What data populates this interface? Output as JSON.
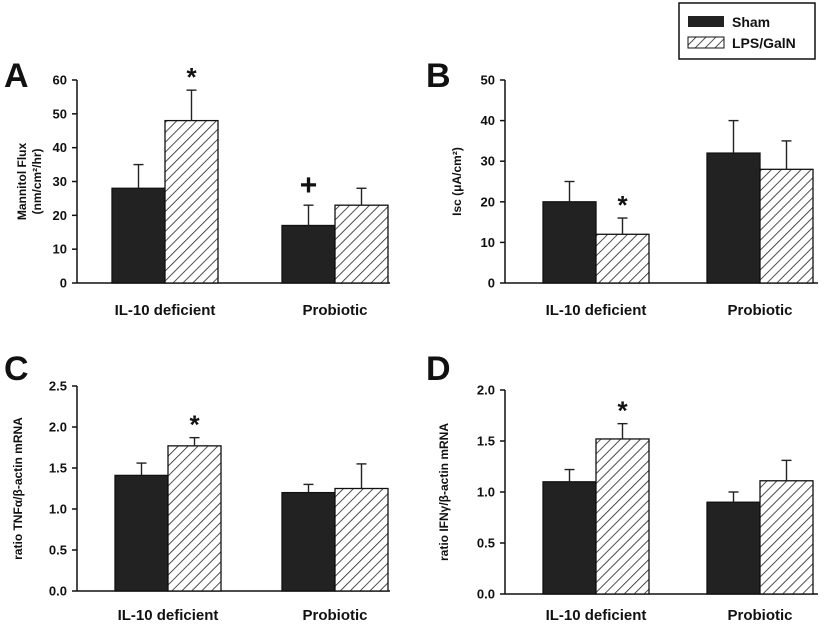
{
  "legend": {
    "sham_label": "Sham",
    "lps_label": "LPS/GalN"
  },
  "colors": {
    "sham": "#222222",
    "lps_hatch": "#222222",
    "axis": "#111111"
  },
  "chart_data": [
    {
      "panel": "A",
      "type": "bar",
      "categories": [
        "IL-10 deficient",
        "Probiotic"
      ],
      "ylabel_line1": "Mannitol Flux",
      "ylabel_line2": "(nm/cm²/hr)",
      "ylim": [
        0,
        60
      ],
      "yticks": [
        "0",
        "10",
        "20",
        "30",
        "40",
        "50",
        "60"
      ],
      "series": [
        {
          "name": "Sham",
          "values": [
            28,
            17
          ],
          "errors": [
            7,
            6
          ]
        },
        {
          "name": "LPS/GalN",
          "values": [
            48,
            23
          ],
          "errors": [
            9,
            5
          ]
        }
      ],
      "annotations": [
        {
          "text": "*",
          "category": 0,
          "series": 1
        },
        {
          "text": "+",
          "category": 1,
          "series": 0
        }
      ]
    },
    {
      "panel": "B",
      "type": "bar",
      "categories": [
        "IL-10 deficient",
        "Probiotic"
      ],
      "ylabel_line1": "Isc (μA/cm²)",
      "ylabel_line2": "",
      "ylim": [
        0,
        50
      ],
      "yticks": [
        "0",
        "10",
        "20",
        "30",
        "40",
        "50"
      ],
      "series": [
        {
          "name": "Sham",
          "values": [
            20,
            32
          ],
          "errors": [
            5,
            8
          ]
        },
        {
          "name": "LPS/GalN",
          "values": [
            12,
            28
          ],
          "errors": [
            4,
            7
          ]
        }
      ],
      "annotations": [
        {
          "text": "*",
          "category": 0,
          "series": 1
        }
      ]
    },
    {
      "panel": "C",
      "type": "bar",
      "categories": [
        "IL-10 deficient",
        "Probiotic"
      ],
      "ylabel_line1": "ratio TNFα/β-actin mRNA",
      "ylabel_line2": "",
      "ylim": [
        0,
        2.5
      ],
      "yticks": [
        "0.0",
        "0.5",
        "1.0",
        "1.5",
        "2.0",
        "2.5"
      ],
      "series": [
        {
          "name": "Sham",
          "values": [
            1.41,
            1.2
          ],
          "errors": [
            0.15,
            0.1
          ]
        },
        {
          "name": "LPS/GalN",
          "values": [
            1.77,
            1.25
          ],
          "errors": [
            0.1,
            0.3
          ]
        }
      ],
      "annotations": [
        {
          "text": "*",
          "category": 0,
          "series": 1
        }
      ]
    },
    {
      "panel": "D",
      "type": "bar",
      "categories": [
        "IL-10 deficient",
        "Probiotic"
      ],
      "ylabel_line1": "ratio IFNγ/β-actin mRNA",
      "ylabel_line2": "",
      "ylim": [
        0,
        2.0
      ],
      "yticks": [
        "0.0",
        "0.5",
        "1.0",
        "1.5",
        "2.0"
      ],
      "series": [
        {
          "name": "Sham",
          "values": [
            1.1,
            0.9
          ],
          "errors": [
            0.12,
            0.1
          ]
        },
        {
          "name": "LPS/GalN",
          "values": [
            1.52,
            1.11
          ],
          "errors": [
            0.15,
            0.2
          ]
        }
      ],
      "annotations": [
        {
          "text": "*",
          "category": 0,
          "series": 1
        }
      ]
    }
  ]
}
